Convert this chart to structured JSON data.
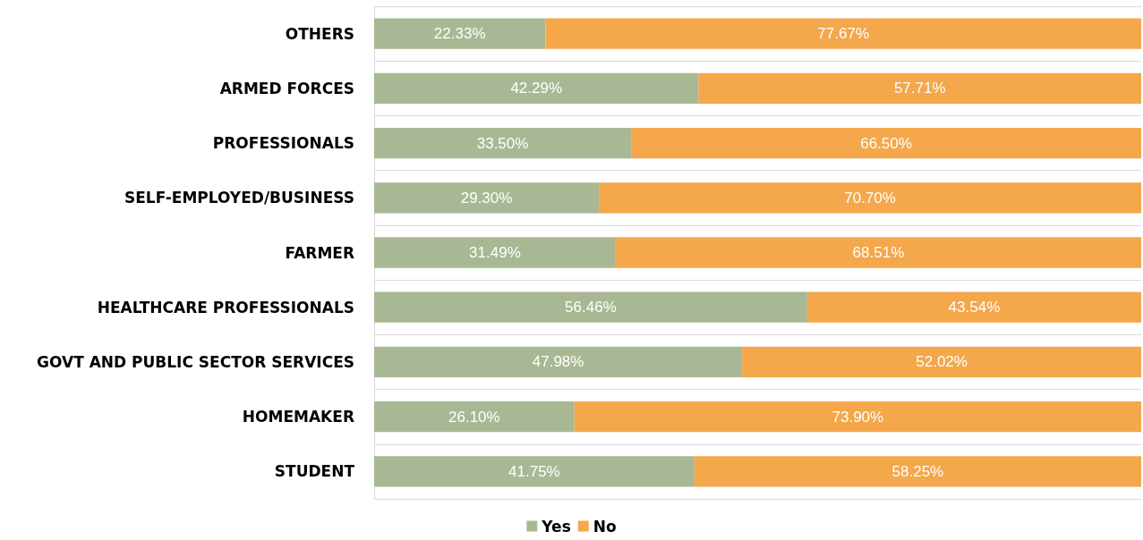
{
  "chart_data": {
    "type": "bar",
    "orientation": "horizontal",
    "stacked": true,
    "grid": "y",
    "legend": "bottom",
    "categories": [
      "OTHERS",
      "ARMED FORCES",
      "PROFESSIONALS",
      "SELF-EMPLOYED/BUSINESS",
      "FARMER",
      "HEALTHCARE PROFESSIONALS",
      "GOVT AND PUBLIC SECTOR SERVICES",
      "HOMEMAKER",
      "STUDENT"
    ],
    "series": [
      {
        "name": "Yes",
        "color": "#a8b894",
        "values": [
          22.33,
          42.29,
          33.5,
          29.3,
          31.49,
          56.46,
          47.98,
          26.1,
          41.75
        ],
        "value_labels": [
          "22.33%",
          "42.29%",
          "33.50%",
          "29.30%",
          "31.49%",
          "56.46%",
          "47.98%",
          "26.10%",
          "41.75%"
        ]
      },
      {
        "name": "No",
        "color": "#f4a74b",
        "values": [
          77.67,
          57.71,
          66.5,
          70.7,
          68.51,
          43.54,
          52.02,
          73.9,
          58.25
        ],
        "value_labels": [
          "77.67%",
          "57.71%",
          "66.50%",
          "70.70%",
          "68.51%",
          "43.54%",
          "52.02%",
          "73.90%",
          "58.25%"
        ]
      }
    ]
  }
}
